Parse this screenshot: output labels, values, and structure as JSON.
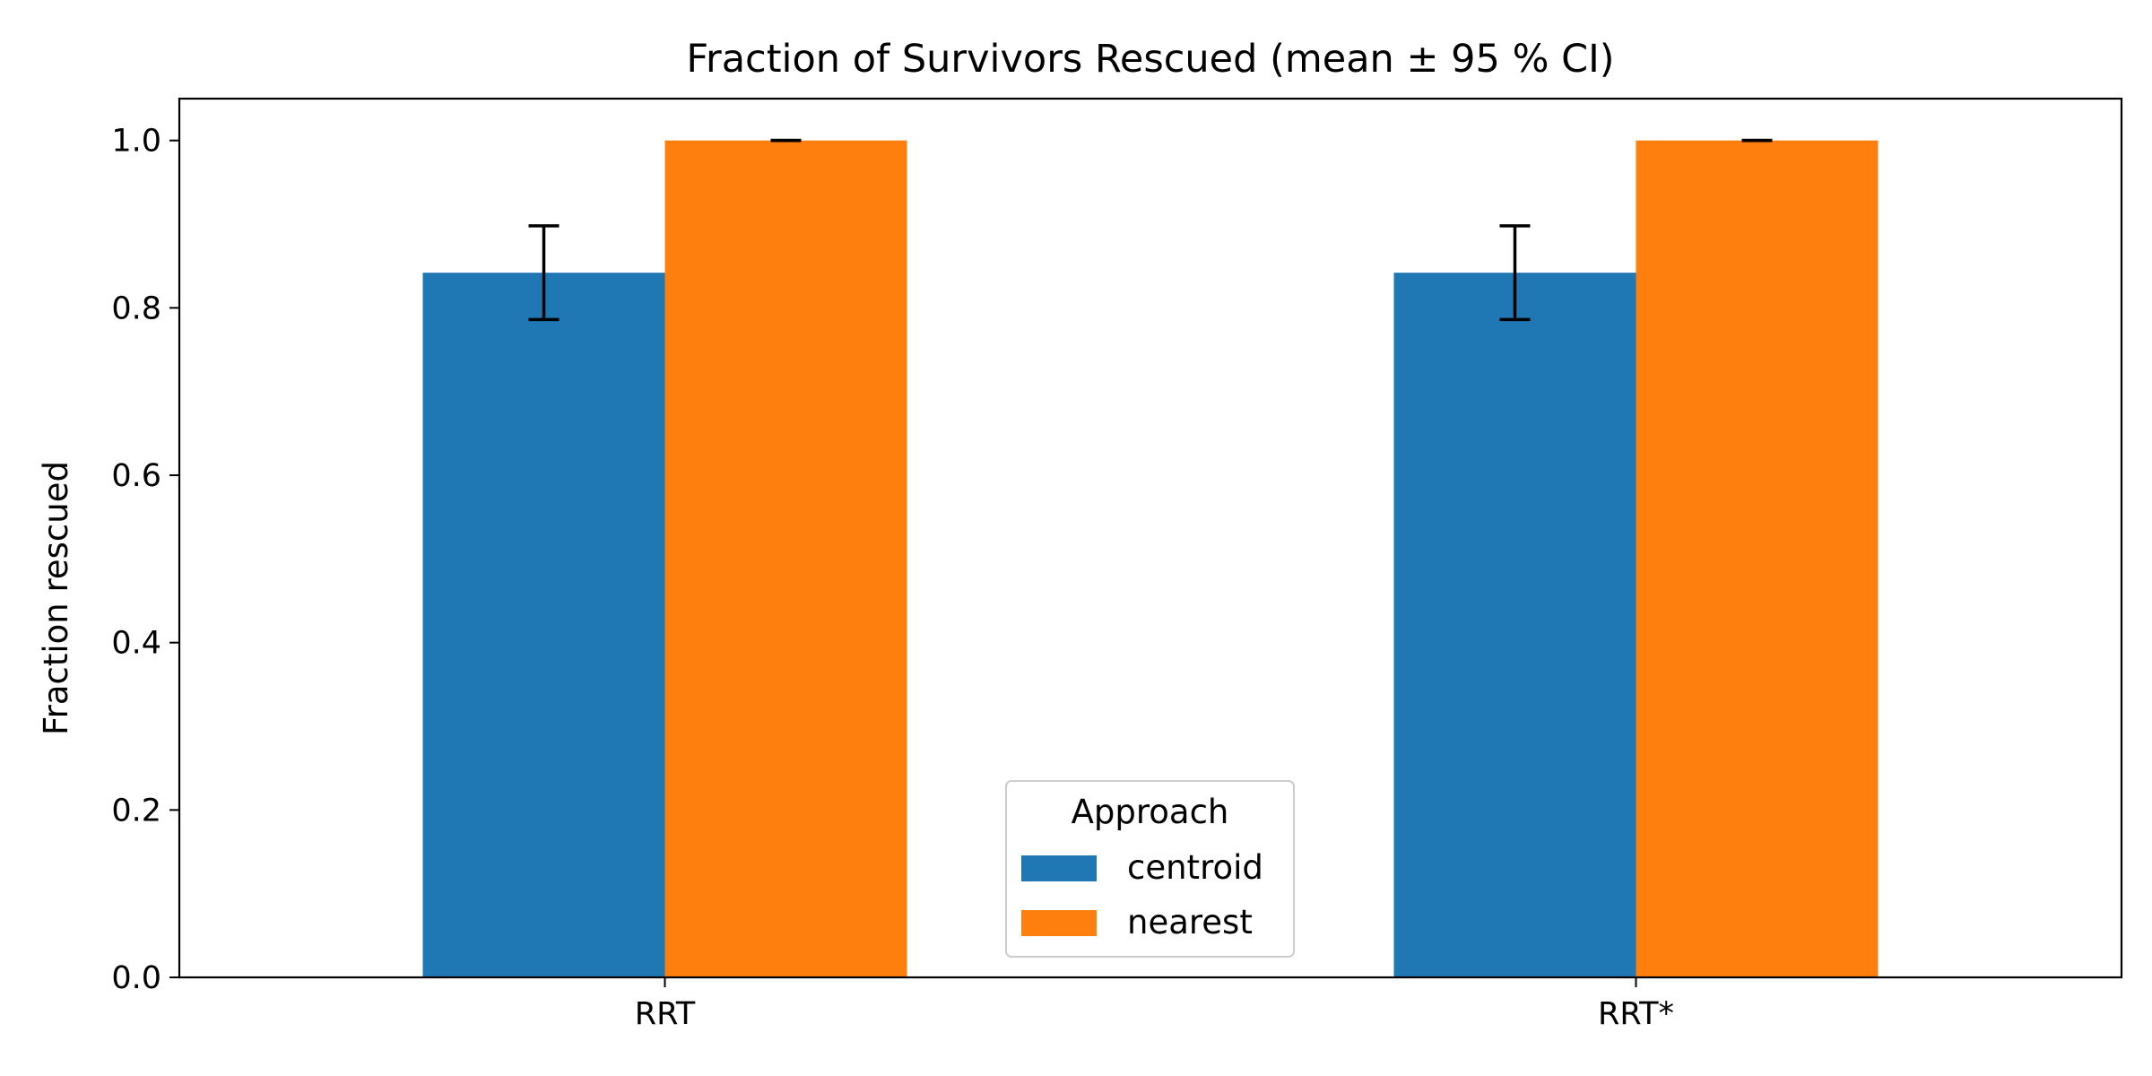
{
  "chart_data": {
    "type": "bar",
    "title": "Fraction of Survivors Rescued (mean ± 95 % CI)",
    "xlabel": "",
    "ylabel": "Fraction rescued",
    "categories": [
      "RRT",
      "RRT*"
    ],
    "ylim": [
      0.0,
      1.05
    ],
    "yticks": [
      0.0,
      0.2,
      0.4,
      0.6,
      0.8,
      1.0
    ],
    "ytick_labels": [
      "0.0",
      "0.2",
      "0.4",
      "0.6",
      "0.8",
      "1.0"
    ],
    "grid": false,
    "legend": {
      "title": "Approach",
      "placement": "lower center"
    },
    "series": [
      {
        "name": "centroid",
        "color": "#1f77b4",
        "values": [
          0.842,
          0.842
        ],
        "ci_low": [
          0.786,
          0.786
        ],
        "ci_high": [
          0.898,
          0.898
        ]
      },
      {
        "name": "nearest",
        "color": "#ff7f0e",
        "values": [
          1.0,
          1.0
        ],
        "ci_low": [
          1.0,
          1.0
        ],
        "ci_high": [
          1.0,
          1.0
        ]
      }
    ]
  }
}
